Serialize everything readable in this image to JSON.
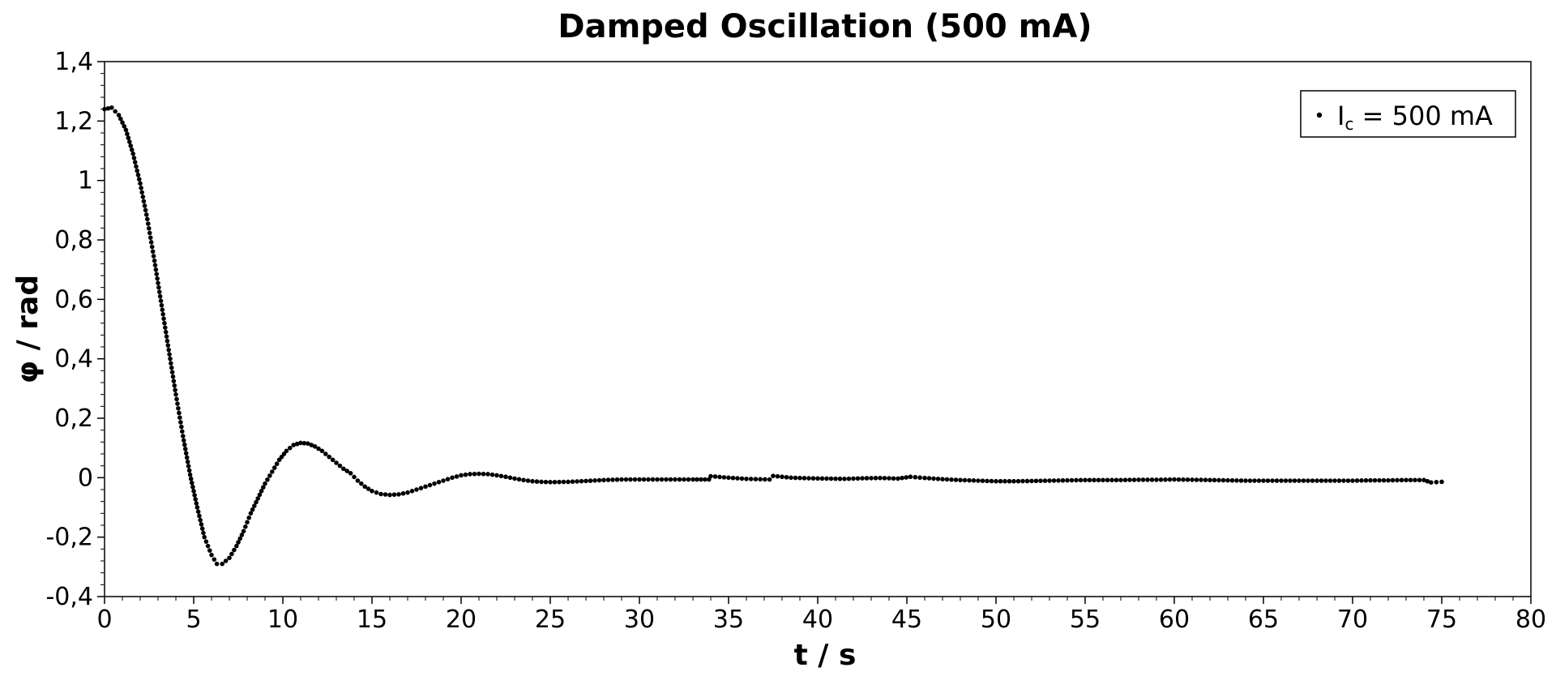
{
  "chart_data": {
    "type": "scatter",
    "title": "Damped Oscillation (500 mA)",
    "xlabel": "t / s",
    "ylabel": "φ / rad",
    "xlim": [
      0,
      80
    ],
    "ylim": [
      -0.4,
      1.4
    ],
    "xticks": [
      "0",
      "5",
      "10",
      "15",
      "20",
      "25",
      "30",
      "35",
      "40",
      "45",
      "50",
      "55",
      "60",
      "65",
      "70",
      "75",
      "80"
    ],
    "yticks": [
      "-0,4",
      "-0,2",
      "0",
      "0,2",
      "0,4",
      "0,6",
      "0,8",
      "1",
      "1,2",
      "1,4"
    ],
    "grid": false,
    "legend_position": "top-right",
    "colors": {
      "marker": "#000000",
      "axis": "#000000",
      "background": "#ffffff"
    },
    "series": [
      {
        "name": "I_c = 500 mA",
        "legend": {
          "base": "I",
          "sub": "c",
          "rest": " = 500 mA"
        },
        "points": [
          [
            0.0,
            1.24
          ],
          [
            0.4,
            1.245
          ],
          [
            0.8,
            1.22
          ],
          [
            1.2,
            1.17
          ],
          [
            1.6,
            1.09
          ],
          [
            2.0,
            0.99
          ],
          [
            2.4,
            0.87
          ],
          [
            2.8,
            0.73
          ],
          [
            3.2,
            0.58
          ],
          [
            3.6,
            0.43
          ],
          [
            4.0,
            0.28
          ],
          [
            4.4,
            0.14
          ],
          [
            4.8,
            0.01
          ],
          [
            5.2,
            -0.1
          ],
          [
            5.6,
            -0.2
          ],
          [
            6.0,
            -0.26
          ],
          [
            6.3,
            -0.29
          ],
          [
            6.6,
            -0.29
          ],
          [
            7.0,
            -0.27
          ],
          [
            7.4,
            -0.23
          ],
          [
            7.8,
            -0.18
          ],
          [
            8.2,
            -0.12
          ],
          [
            8.6,
            -0.07
          ],
          [
            9.0,
            -0.02
          ],
          [
            9.4,
            0.02
          ],
          [
            9.8,
            0.06
          ],
          [
            10.2,
            0.09
          ],
          [
            10.6,
            0.11
          ],
          [
            11.0,
            0.117
          ],
          [
            11.4,
            0.115
          ],
          [
            11.8,
            0.105
          ],
          [
            12.2,
            0.09
          ],
          [
            12.6,
            0.07
          ],
          [
            13.0,
            0.05
          ],
          [
            13.4,
            0.03
          ],
          [
            13.8,
            0.015
          ],
          [
            14.2,
            -0.01
          ],
          [
            14.6,
            -0.03
          ],
          [
            15.0,
            -0.045
          ],
          [
            15.5,
            -0.055
          ],
          [
            16.0,
            -0.058
          ],
          [
            16.5,
            -0.056
          ],
          [
            17.0,
            -0.05
          ],
          [
            17.5,
            -0.04
          ],
          [
            18.0,
            -0.03
          ],
          [
            18.5,
            -0.02
          ],
          [
            19.0,
            -0.01
          ],
          [
            19.5,
            0.0
          ],
          [
            20.0,
            0.008
          ],
          [
            20.5,
            0.012
          ],
          [
            21.0,
            0.013
          ],
          [
            21.5,
            0.012
          ],
          [
            22.0,
            0.008
          ],
          [
            22.5,
            0.003
          ],
          [
            23.0,
            -0.003
          ],
          [
            23.5,
            -0.008
          ],
          [
            24.0,
            -0.012
          ],
          [
            24.5,
            -0.014
          ],
          [
            25.0,
            -0.015
          ],
          [
            26.0,
            -0.014
          ],
          [
            27.0,
            -0.011
          ],
          [
            28.0,
            -0.008
          ],
          [
            29.0,
            -0.006
          ],
          [
            30.0,
            -0.006
          ],
          [
            31.0,
            -0.006
          ],
          [
            32.0,
            -0.006
          ],
          [
            33.0,
            -0.006
          ],
          [
            33.9,
            -0.006
          ],
          [
            34.0,
            0.005
          ],
          [
            35.0,
            0.0
          ],
          [
            36.0,
            -0.004
          ],
          [
            37.3,
            -0.006
          ],
          [
            37.5,
            0.006
          ],
          [
            38.5,
            0.0
          ],
          [
            39.5,
            -0.002
          ],
          [
            40.5,
            -0.003
          ],
          [
            41.5,
            -0.004
          ],
          [
            42.5,
            -0.002
          ],
          [
            43.5,
            -0.001
          ],
          [
            44.5,
            -0.003
          ],
          [
            45.2,
            0.003
          ],
          [
            46.0,
            -0.001
          ],
          [
            47.0,
            -0.005
          ],
          [
            48.0,
            -0.008
          ],
          [
            49.0,
            -0.01
          ],
          [
            50.0,
            -0.012
          ],
          [
            51.0,
            -0.012
          ],
          [
            52.0,
            -0.011
          ],
          [
            53.0,
            -0.01
          ],
          [
            54.0,
            -0.009
          ],
          [
            55.0,
            -0.008
          ],
          [
            56.0,
            -0.008
          ],
          [
            57.0,
            -0.008
          ],
          [
            58.0,
            -0.007
          ],
          [
            59.0,
            -0.007
          ],
          [
            60.0,
            -0.006
          ],
          [
            61.0,
            -0.007
          ],
          [
            62.0,
            -0.008
          ],
          [
            63.0,
            -0.009
          ],
          [
            64.0,
            -0.01
          ],
          [
            65.0,
            -0.01
          ],
          [
            66.0,
            -0.01
          ],
          [
            67.0,
            -0.01
          ],
          [
            68.0,
            -0.01
          ],
          [
            69.0,
            -0.01
          ],
          [
            70.0,
            -0.01
          ],
          [
            71.0,
            -0.009
          ],
          [
            72.0,
            -0.009
          ],
          [
            73.0,
            -0.008
          ],
          [
            74.0,
            -0.008
          ],
          [
            74.4,
            -0.016
          ],
          [
            75.0,
            -0.014
          ]
        ]
      }
    ]
  }
}
